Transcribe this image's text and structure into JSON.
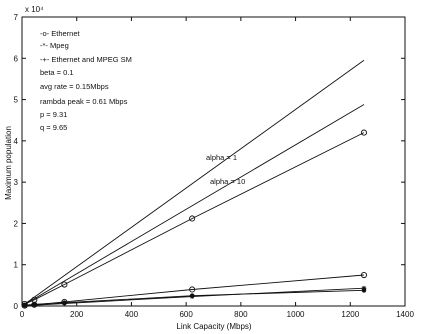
{
  "chart_data": {
    "type": "line",
    "title": "",
    "xlabel": "Link Capacity (Mbps)",
    "ylabel": "Maximum population",
    "xlim": [
      0,
      1400
    ],
    "ylim": [
      0,
      7
    ],
    "xticks": [
      0,
      200,
      400,
      600,
      800,
      1000,
      1200,
      1400
    ],
    "yticks": [
      0,
      1,
      2,
      3,
      4,
      5,
      6,
      7
    ],
    "y_exponent_label": "x 10⁴",
    "grid": false,
    "legend_position": "top-left",
    "legend": [
      {
        "label": "-o- Ethernet"
      },
      {
        "label": "-*- Mpeg"
      },
      {
        "label": "-+- Ethernet and MPEG SM"
      }
    ],
    "parameters": [
      "beta  = 0.1",
      "avg rate = 0.15Mbps",
      "rambda peak = 0.61 Mbps",
      "p = 9.31",
      "q = 9.65"
    ],
    "annotations": [
      "alpha = 1",
      "alpha = 10"
    ],
    "series": [
      {
        "marker": "none",
        "x": [
          0,
          1250
        ],
        "y": [
          0,
          5.95
        ]
      },
      {
        "marker": "none",
        "x": [
          0,
          1250
        ],
        "y": [
          0,
          4.88
        ]
      },
      {
        "marker": "circle",
        "x": [
          10,
          45,
          155,
          622,
          1250
        ],
        "y": [
          0.05,
          0.15,
          0.52,
          2.12,
          4.2
        ]
      },
      {
        "marker": "circle",
        "x": [
          10,
          45,
          155,
          622,
          1250
        ],
        "y": [
          0.01,
          0.03,
          0.1,
          0.4,
          0.75
        ]
      },
      {
        "marker": "asterisk",
        "x": [
          10,
          45,
          155,
          622,
          1250
        ],
        "y": [
          0.005,
          0.02,
          0.06,
          0.23,
          0.43
        ]
      },
      {
        "marker": "dot",
        "x": [
          10,
          45,
          155,
          622,
          1250
        ],
        "y": [
          0.02,
          0.04,
          0.08,
          0.25,
          0.38
        ]
      }
    ]
  }
}
